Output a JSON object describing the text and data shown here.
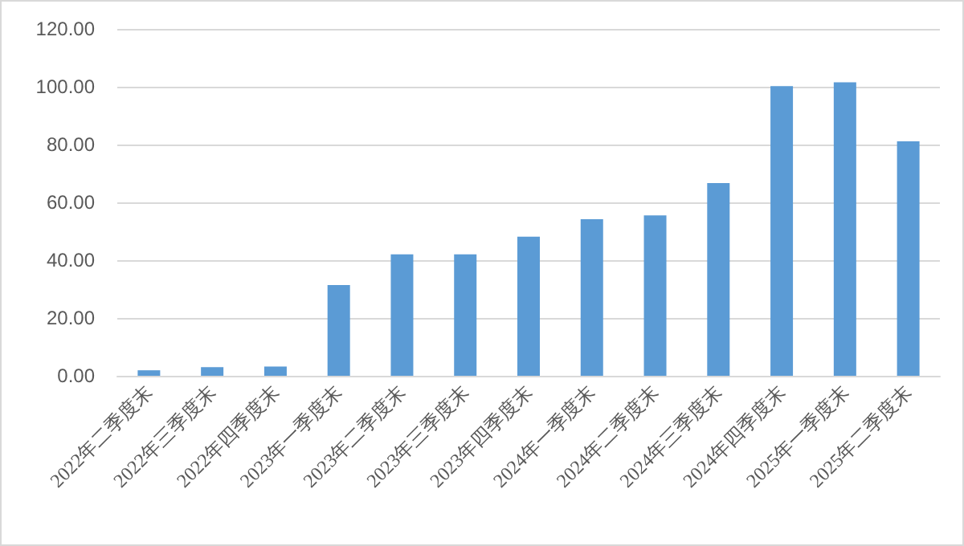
{
  "chart_data": {
    "type": "bar",
    "categories": [
      "2022年二季度末",
      "2022年三季度末",
      "2022年四季度末",
      "2023年一季度末",
      "2023年二季度末",
      "2023年三季度末",
      "2023年四季度末",
      "2024年一季度末",
      "2024年二季度末",
      "2024年三季度末",
      "2024年四季度末",
      "2025年一季度末",
      "2025年二季度末"
    ],
    "values": [
      1.9,
      3.0,
      3.2,
      31.4,
      42.0,
      42.0,
      48.1,
      54.2,
      55.5,
      66.7,
      100.2,
      101.5,
      81.1
    ],
    "color": "#5b9bd5",
    "ylim": [
      0,
      120
    ],
    "yticks": [
      {
        "value": 0,
        "label": "0.00"
      },
      {
        "value": 20,
        "label": "20.00"
      },
      {
        "value": 40,
        "label": "40.00"
      },
      {
        "value": 60,
        "label": "60.00"
      },
      {
        "value": 80,
        "label": "80.00"
      },
      {
        "value": 100,
        "label": "100.00"
      },
      {
        "value": 120,
        "label": "120.00"
      }
    ],
    "grid": "y"
  }
}
